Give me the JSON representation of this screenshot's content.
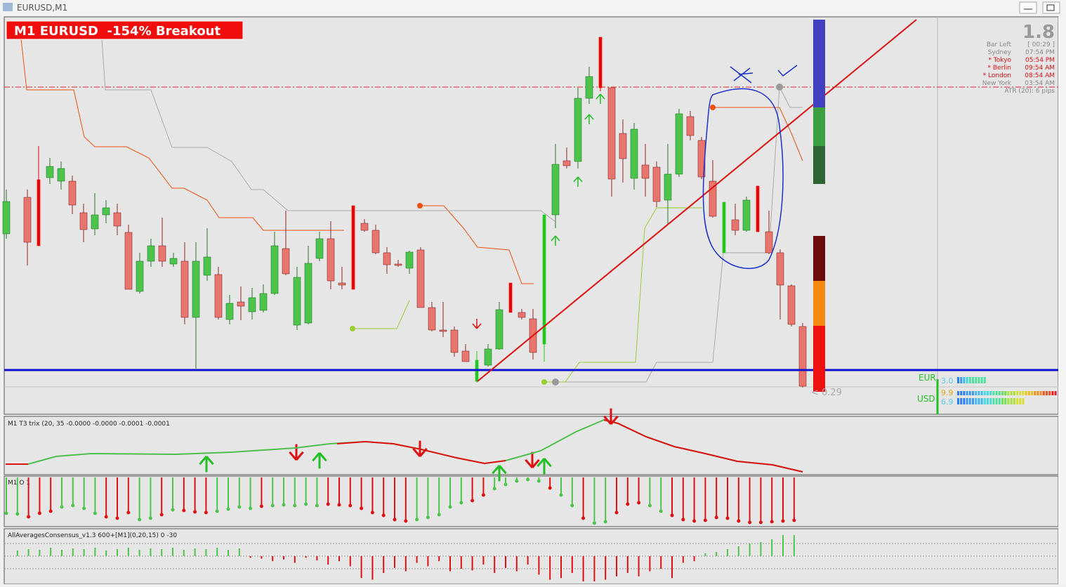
{
  "window": {
    "title": "EURUSD,M1"
  },
  "main_panel": {
    "banner": "M1 EURUSD  -154% Breakout",
    "big_value": "1.8",
    "info": [
      {
        "label": "Bar Left",
        "value": "[ 00:29 ]"
      },
      {
        "label": "Sydney",
        "value": "07:54 PM"
      },
      {
        "label": "* Tokyo",
        "value": "05:54 PM"
      },
      {
        "label": "* Berlin",
        "value": "09:54 AM"
      },
      {
        "label": "* London",
        "value": "08:54 AM"
      },
      {
        "label": "New York",
        "value": "03:54 AM"
      }
    ],
    "atr": "ATR (20): 6 pips",
    "eur_label": "EUR",
    "eur_value": "3.0",
    "usd_label": "USD",
    "usd_values": [
      "9.9",
      "6.9"
    ],
    "bar_marker": "< 0.29"
  },
  "panels": [
    {
      "label": "M1 T3 trix (20, 35 -0.0000 -0.0000 -0.0001 -0.0001"
    },
    {
      "label": "M1 O 1"
    },
    {
      "label": "AllAveragesConsensus_v1.3 600+[M1](0,20,15) 0 -30"
    }
  ]
}
